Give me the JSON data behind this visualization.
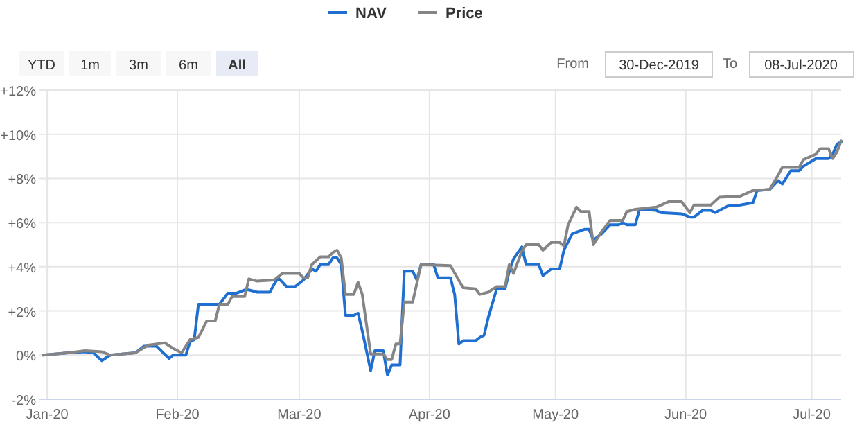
{
  "chart_data": {
    "type": "line",
    "legend": "top",
    "grid": true,
    "marker": "none",
    "line_style": "solid",
    "annotations": [
      "YTD",
      "1m",
      "3m",
      "6m",
      "All",
      "From",
      "30-Dec-2019",
      "To",
      "08-Jul-2020"
    ],
    "xlim": [
      "2019-12-30",
      "2020-07-08"
    ],
    "xticks": [
      {
        "value": "2020-01-01",
        "label": "Jan-20"
      },
      {
        "value": "2020-02-01",
        "label": "Feb-20"
      },
      {
        "value": "2020-03-01",
        "label": "Mar-20"
      },
      {
        "value": "2020-04-01",
        "label": "Apr-20"
      },
      {
        "value": "2020-05-01",
        "label": "May-20"
      },
      {
        "value": "2020-06-01",
        "label": "Jun-20"
      },
      {
        "value": "2020-07-01",
        "label": "Jul-20"
      }
    ],
    "ylim": [
      -2,
      12
    ],
    "yticks": [
      {
        "value": -2,
        "label": "-2%"
      },
      {
        "value": 0,
        "label": "0%"
      },
      {
        "value": 2,
        "label": "+2%"
      },
      {
        "value": 4,
        "label": "+4%"
      },
      {
        "value": 6,
        "label": "+6%"
      },
      {
        "value": 8,
        "label": "+8%"
      },
      {
        "value": 10,
        "label": "+10%"
      },
      {
        "value": 12,
        "label": "+12%"
      }
    ],
    "series": [
      {
        "name": "NAV",
        "color": "#1f6fd1",
        "x": [
          "2019-12-31",
          "2020-01-06",
          "2020-01-10",
          "2020-01-12",
          "2020-01-14",
          "2020-01-16",
          "2020-01-22",
          "2020-01-24",
          "2020-01-27",
          "2020-01-30",
          "2020-01-31",
          "2020-02-03",
          "2020-02-04",
          "2020-02-05",
          "2020-02-06",
          "2020-02-09",
          "2020-02-11",
          "2020-02-13",
          "2020-02-15",
          "2020-02-17",
          "2020-02-18",
          "2020-02-20",
          "2020-02-23",
          "2020-02-24",
          "2020-02-25",
          "2020-02-27",
          "2020-02-29",
          "2020-03-02",
          "2020-03-04",
          "2020-03-05",
          "2020-03-06",
          "2020-03-08",
          "2020-03-09",
          "2020-03-10",
          "2020-03-11",
          "2020-03-12",
          "2020-03-14",
          "2020-03-15",
          "2020-03-16",
          "2020-03-18",
          "2020-03-19",
          "2020-03-21",
          "2020-03-22",
          "2020-03-23",
          "2020-03-25",
          "2020-03-26",
          "2020-03-28",
          "2020-03-29",
          "2020-03-30",
          "2020-04-02",
          "2020-04-03",
          "2020-04-06",
          "2020-04-07",
          "2020-04-08",
          "2020-04-09",
          "2020-04-12",
          "2020-04-13",
          "2020-04-14",
          "2020-04-15",
          "2020-04-17",
          "2020-04-19",
          "2020-04-20",
          "2020-04-21",
          "2020-04-23",
          "2020-04-24",
          "2020-04-27",
          "2020-04-28",
          "2020-04-30",
          "2020-05-02",
          "2020-05-03",
          "2020-05-05",
          "2020-05-08",
          "2020-05-09",
          "2020-05-10",
          "2020-05-12",
          "2020-05-14",
          "2020-05-16",
          "2020-05-17",
          "2020-05-18",
          "2020-05-20",
          "2020-05-21",
          "2020-05-25",
          "2020-05-26",
          "2020-05-31",
          "2020-06-02",
          "2020-06-03",
          "2020-06-05",
          "2020-06-07",
          "2020-06-08",
          "2020-06-11",
          "2020-06-14",
          "2020-06-17",
          "2020-06-18",
          "2020-06-21",
          "2020-06-23",
          "2020-06-24",
          "2020-06-26",
          "2020-06-28",
          "2020-06-29",
          "2020-07-02",
          "2020-07-05",
          "2020-07-06",
          "2020-07-07",
          "2020-07-08"
        ],
        "values": [
          0,
          0.1,
          0.15,
          0.1,
          -0.25,
          0,
          0.1,
          0.4,
          0.4,
          -0.15,
          0,
          0,
          0.6,
          0.7,
          2.3,
          2.3,
          2.3,
          2.8,
          2.8,
          2.95,
          2.95,
          2.85,
          2.85,
          3.2,
          3.5,
          3.1,
          3.1,
          3.4,
          3.9,
          3.8,
          4.1,
          4.1,
          4.4,
          4.4,
          4.1,
          1.8,
          1.8,
          1.9,
          1.1,
          -0.7,
          0.2,
          0.2,
          -0.9,
          -0.45,
          -0.45,
          3.8,
          3.8,
          3.4,
          4.1,
          4.1,
          3.5,
          3.5,
          2.75,
          0.5,
          0.65,
          0.65,
          0.8,
          0.9,
          1.7,
          3,
          3,
          3.8,
          4.35,
          4.9,
          4.1,
          4.1,
          3.6,
          3.9,
          3.9,
          4.75,
          5.5,
          5.7,
          5.7,
          5.2,
          5.5,
          5.9,
          5.9,
          6,
          5.9,
          5.9,
          6.6,
          6.55,
          6.45,
          6.4,
          6.25,
          6.25,
          6.55,
          6.55,
          6.45,
          6.75,
          6.8,
          6.9,
          7.45,
          7.5,
          7.9,
          7.75,
          8.35,
          8.35,
          8.55,
          8.9,
          8.9,
          9.1,
          9.55,
          9.65
        ]
      },
      {
        "name": "Price",
        "color": "#858585",
        "x": [
          "2019-12-31",
          "2020-01-06",
          "2020-01-10",
          "2020-01-14",
          "2020-01-16",
          "2020-01-22",
          "2020-01-25",
          "2020-01-29",
          "2020-01-31",
          "2020-02-02",
          "2020-02-04",
          "2020-02-06",
          "2020-02-08",
          "2020-02-10",
          "2020-02-11",
          "2020-02-13",
          "2020-02-14",
          "2020-02-17",
          "2020-02-18",
          "2020-02-20",
          "2020-02-24",
          "2020-02-26",
          "2020-03-01",
          "2020-03-02",
          "2020-03-03",
          "2020-03-04",
          "2020-03-06",
          "2020-03-08",
          "2020-03-09",
          "2020-03-10",
          "2020-03-11",
          "2020-03-12",
          "2020-03-14",
          "2020-03-15",
          "2020-03-16",
          "2020-03-18",
          "2020-03-21",
          "2020-03-22",
          "2020-03-23",
          "2020-03-24",
          "2020-03-25",
          "2020-03-26",
          "2020-03-28",
          "2020-03-30",
          "2020-04-06",
          "2020-04-09",
          "2020-04-12",
          "2020-04-13",
          "2020-04-15",
          "2020-04-17",
          "2020-04-19",
          "2020-04-20",
          "2020-04-21",
          "2020-04-23",
          "2020-04-24",
          "2020-04-27",
          "2020-04-28",
          "2020-04-30",
          "2020-05-02",
          "2020-05-03",
          "2020-05-04",
          "2020-05-06",
          "2020-05-07",
          "2020-05-09",
          "2020-05-10",
          "2020-05-12",
          "2020-05-14",
          "2020-05-17",
          "2020-05-18",
          "2020-05-20",
          "2020-05-25",
          "2020-05-28",
          "2020-05-31",
          "2020-06-02",
          "2020-06-03",
          "2020-06-07",
          "2020-06-09",
          "2020-06-14",
          "2020-06-17",
          "2020-06-21",
          "2020-06-23",
          "2020-06-24",
          "2020-06-28",
          "2020-06-29",
          "2020-07-02",
          "2020-07-03",
          "2020-07-05",
          "2020-07-06",
          "2020-07-07",
          "2020-07-08"
        ],
        "values": [
          0,
          0.1,
          0.2,
          0.15,
          0,
          0.1,
          0.45,
          0.55,
          0.3,
          0.1,
          0.7,
          0.8,
          1.55,
          1.55,
          2.3,
          2.3,
          2.65,
          2.65,
          3.45,
          3.35,
          3.4,
          3.7,
          3.7,
          3.5,
          3.5,
          4.1,
          4.45,
          4.45,
          4.65,
          4.75,
          4.4,
          2.75,
          2.75,
          3.3,
          2.75,
          0.05,
          0.05,
          -0.2,
          -0.2,
          0.5,
          0.5,
          2.4,
          2.4,
          4.1,
          4.05,
          3.05,
          3,
          2.75,
          2.85,
          3.1,
          3.1,
          4.1,
          3.7,
          4.7,
          5,
          5,
          4.75,
          5.1,
          5.1,
          4.95,
          5.9,
          6.7,
          6.5,
          6.5,
          5,
          5.6,
          6.1,
          6.1,
          6.5,
          6.6,
          6.7,
          6.95,
          6.95,
          6.45,
          6.8,
          6.8,
          7.15,
          7.2,
          7.45,
          7.5,
          8.15,
          8.5,
          8.5,
          8.85,
          9.1,
          9.35,
          9.35,
          8.9,
          9.2,
          9.7
        ]
      }
    ]
  }
}
